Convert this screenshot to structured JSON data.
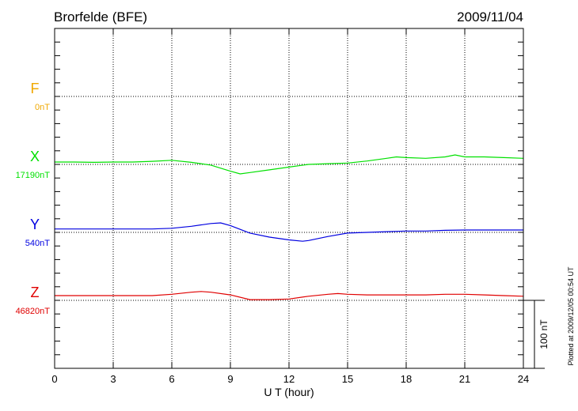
{
  "chart_data": {
    "type": "line",
    "title": "Brorfelde (BFE)",
    "date": "2009/11/04",
    "xlabel": "U T (hour)",
    "xlim": [
      0,
      24
    ],
    "xticks": [
      "0",
      "3",
      "6",
      "9",
      "12",
      "15",
      "18",
      "21",
      "24"
    ],
    "scale_label": "100 nT",
    "scale_nT": 100,
    "plotted_note": "Plotted at 2009/12/05 00:54 UT",
    "grid": true,
    "series": [
      {
        "name": "F",
        "baseline_label": "0nT",
        "color": "#f0a800",
        "hours": [],
        "offset_nT": []
      },
      {
        "name": "X",
        "baseline_label": "17190nT",
        "color": "#00e000",
        "hours": [
          0,
          1,
          2,
          3,
          4,
          5,
          6,
          7,
          8,
          9,
          9.5,
          10,
          11,
          12,
          13,
          14,
          15,
          16,
          17,
          17.5,
          18,
          19,
          20,
          20.5,
          21,
          22,
          23,
          24
        ],
        "offset_nT": [
          3.5,
          3.5,
          3,
          3.5,
          3.5,
          4.5,
          6,
          3,
          -1,
          -10,
          -14,
          -12,
          -8,
          -4,
          0,
          1,
          2,
          5,
          9,
          11,
          10,
          9,
          11,
          14,
          11,
          11,
          10,
          9
        ]
      },
      {
        "name": "Y",
        "baseline_label": "540nT",
        "color": "#0000e0",
        "hours": [
          0,
          1,
          2,
          3,
          4,
          5,
          6,
          7,
          8,
          8.5,
          9,
          10,
          11,
          12,
          12.7,
          13,
          14,
          15,
          16,
          17,
          18,
          19,
          20,
          21,
          22,
          23,
          24
        ],
        "offset_nT": [
          5,
          5,
          5,
          5,
          5,
          5,
          6,
          9,
          13,
          14,
          10,
          -1,
          -7,
          -11,
          -13,
          -12,
          -6,
          -1,
          0,
          1,
          2,
          2,
          3,
          3.5,
          3.5,
          3.5,
          3.5
        ]
      },
      {
        "name": "Z",
        "baseline_label": "46820nT",
        "color": "#e00000",
        "hours": [
          0,
          1,
          2,
          3,
          4,
          5,
          6,
          7,
          7.5,
          8,
          9,
          10,
          11,
          12,
          13,
          14,
          14.5,
          15,
          16,
          17,
          18,
          19,
          20,
          21,
          22,
          23,
          24
        ],
        "offset_nT": [
          7,
          7,
          7,
          7,
          7,
          7,
          9,
          12,
          13,
          12,
          8,
          1,
          1,
          2,
          6,
          9,
          10,
          9,
          8,
          8,
          8,
          8,
          9,
          9,
          8,
          7,
          6
        ]
      }
    ]
  }
}
